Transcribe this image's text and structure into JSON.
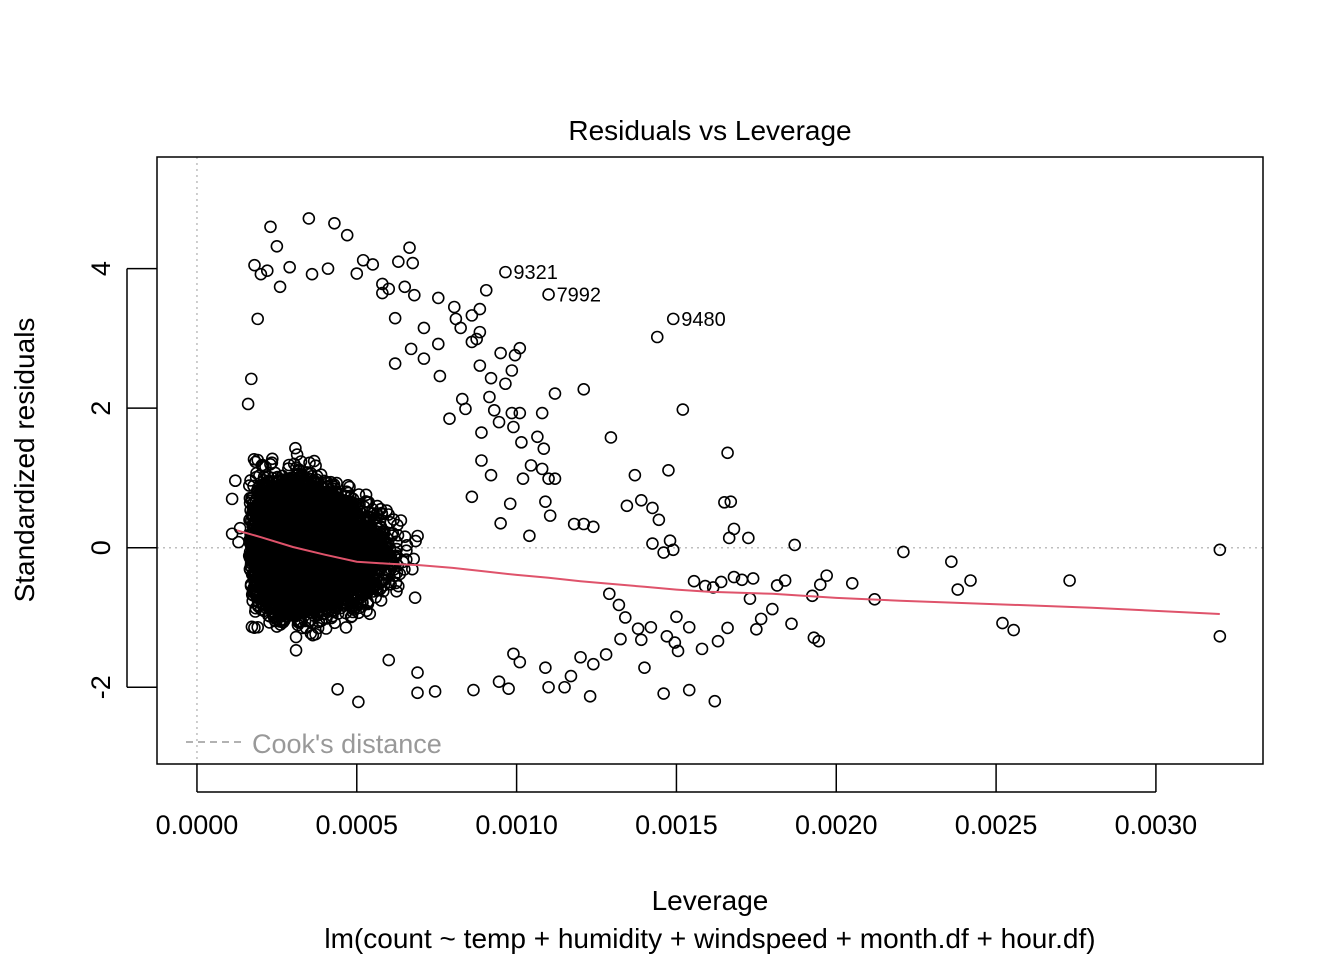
{
  "chart_data": {
    "type": "scatter",
    "title": "Residuals vs Leverage",
    "xlabel": "Leverage",
    "subtitle": "lm(count ~ temp + humidity + windspeed + month.df + hour.df)",
    "ylabel": "Standardized residuals",
    "xlim": [
      -0.000125,
      0.003335
    ],
    "ylim": [
      -3.1,
      5.6
    ],
    "x_ticks": [
      0.0,
      0.0005,
      0.001,
      0.0015,
      0.002,
      0.0025,
      0.003
    ],
    "x_tick_labels": [
      "0.0000",
      "0.0005",
      "0.0010",
      "0.0015",
      "0.0020",
      "0.0025",
      "0.0030"
    ],
    "y_ticks": [
      -2,
      0,
      2,
      4
    ],
    "y_tick_labels": [
      "-2",
      "0",
      "2",
      "4"
    ],
    "reference_lines": {
      "horizontal": 0,
      "vertical": 0
    },
    "legend": {
      "entries": [
        "Cook's distance"
      ],
      "placement": "bottom-left"
    },
    "colors": {
      "points": "#000000",
      "smooth": "#DF536B",
      "reference": "#bebebe",
      "legend_text": "#999999"
    },
    "labeled_points": [
      {
        "label": "9321",
        "x": 0.000965,
        "y": 3.95
      },
      {
        "label": "7992",
        "x": 0.0011,
        "y": 3.63
      },
      {
        "label": "9480",
        "x": 0.00149,
        "y": 3.28
      }
    ],
    "points": [
      [
        0.00011,
        0.2
      ],
      [
        0.00011,
        0.7
      ],
      [
        0.000135,
        0.28
      ],
      [
        0.00013,
        0.08
      ],
      [
        0.00012,
        0.96
      ],
      [
        0.00023,
        4.6
      ],
      [
        0.00035,
        4.72
      ],
      [
        0.00043,
        4.65
      ],
      [
        0.00047,
        4.48
      ],
      [
        0.00025,
        4.32
      ],
      [
        0.000665,
        4.3
      ],
      [
        0.00063,
        4.1
      ],
      [
        0.000675,
        4.08
      ],
      [
        0.00052,
        4.12
      ],
      [
        0.00018,
        4.05
      ],
      [
        0.00058,
        3.78
      ],
      [
        0.00058,
        3.65
      ],
      [
        0.000755,
        3.58
      ],
      [
        0.00068,
        3.62
      ],
      [
        0.000805,
        3.45
      ],
      [
        0.00081,
        3.28
      ],
      [
        0.00086,
        3.33
      ],
      [
        0.000885,
        3.42
      ],
      [
        0.000905,
        3.69
      ],
      [
        0.000885,
        3.09
      ],
      [
        0.000825,
        3.15
      ],
      [
        0.000755,
        2.92
      ],
      [
        0.000875,
        2.99
      ],
      [
        0.00086,
        2.95
      ],
      [
        0.00095,
        2.79
      ],
      [
        0.000995,
        2.76
      ],
      [
        0.00101,
        2.86
      ],
      [
        0.000985,
        2.54
      ],
      [
        0.000965,
        2.35
      ],
      [
        0.000885,
        2.61
      ],
      [
        0.00092,
        2.43
      ],
      [
        0.000915,
        2.16
      ],
      [
        0.00093,
        1.97
      ],
      [
        0.000985,
        1.93
      ],
      [
        0.00101,
        1.93
      ],
      [
        0.00099,
        1.73
      ],
      [
        0.000945,
        1.8
      ],
      [
        0.00089,
        1.65
      ],
      [
        0.001015,
        1.51
      ],
      [
        0.001065,
        1.59
      ],
      [
        0.00108,
        1.93
      ],
      [
        0.00112,
        2.21
      ],
      [
        0.00121,
        2.27
      ],
      [
        0.001085,
        1.42
      ],
      [
        0.00108,
        1.13
      ],
      [
        0.001045,
        1.18
      ],
      [
        0.00102,
        0.99
      ],
      [
        0.0011,
        0.99
      ],
      [
        0.00112,
        0.99
      ],
      [
        0.00109,
        0.66
      ],
      [
        0.001105,
        0.46
      ],
      [
        0.00118,
        0.34
      ],
      [
        0.00121,
        0.34
      ],
      [
        0.00124,
        0.3
      ],
      [
        0.001295,
        1.58
      ],
      [
        0.001345,
        0.6
      ],
      [
        0.00137,
        1.04
      ],
      [
        0.00139,
        0.68
      ],
      [
        0.001425,
        0.57
      ],
      [
        0.001425,
        0.06
      ],
      [
        0.00144,
        3.02
      ],
      [
        0.001445,
        0.4
      ],
      [
        0.00146,
        -0.07
      ],
      [
        0.001475,
        1.11
      ],
      [
        0.00152,
        1.98
      ],
      [
        0.00148,
        0.1
      ],
      [
        0.00149,
        -0.03
      ],
      [
        0.001555,
        -0.48
      ],
      [
        0.00159,
        -0.55
      ],
      [
        0.001615,
        -0.57
      ],
      [
        0.00164,
        -0.49
      ],
      [
        0.00165,
        0.65
      ],
      [
        0.00167,
        0.66
      ],
      [
        0.00166,
        1.36
      ],
      [
        0.001665,
        0.14
      ],
      [
        0.00168,
        0.27
      ],
      [
        0.00168,
        -0.42
      ],
      [
        0.001705,
        -0.46
      ],
      [
        0.001725,
        0.14
      ],
      [
        0.00173,
        -0.73
      ],
      [
        0.00174,
        -0.44
      ],
      [
        0.00175,
        -1.17
      ],
      [
        0.001765,
        -1.02
      ],
      [
        0.0018,
        -0.88
      ],
      [
        0.001815,
        -0.54
      ],
      [
        0.00184,
        -0.47
      ],
      [
        0.00186,
        -1.09
      ],
      [
        0.00187,
        0.04
      ],
      [
        0.001925,
        -0.69
      ],
      [
        0.00193,
        -1.29
      ],
      [
        0.001945,
        -1.34
      ],
      [
        0.00195,
        -0.53
      ],
      [
        0.00197,
        -0.4
      ],
      [
        0.00205,
        -0.51
      ],
      [
        0.00212,
        -0.74
      ],
      [
        0.00221,
        -0.06
      ],
      [
        0.00236,
        -0.2
      ],
      [
        0.00238,
        -0.6
      ],
      [
        0.00242,
        -0.47
      ],
      [
        0.00252,
        -1.08
      ],
      [
        0.002555,
        -1.18
      ],
      [
        0.00273,
        -0.47
      ],
      [
        0.0032,
        -0.03
      ],
      [
        0.0032,
        -1.27
      ],
      [
        0.00162,
        -2.2
      ],
      [
        0.00154,
        -2.04
      ],
      [
        0.00146,
        -2.09
      ],
      [
        0.00123,
        -2.13
      ],
      [
        0.00115,
        -2.0
      ],
      [
        0.0011,
        -2.0
      ],
      [
        0.00109,
        -1.72
      ],
      [
        0.000975,
        -2.02
      ],
      [
        0.000945,
        -1.92
      ],
      [
        0.000865,
        -2.04
      ],
      [
        0.000745,
        -2.06
      ],
      [
        0.00069,
        -2.08
      ],
      [
        0.000505,
        -2.21
      ],
      [
        0.00044,
        -2.03
      ],
      [
        0.0014,
        -1.72
      ],
      [
        0.00139,
        -1.32
      ],
      [
        0.001495,
        -1.36
      ],
      [
        0.001505,
        -1.48
      ],
      [
        0.00158,
        -1.45
      ],
      [
        0.00163,
        -1.34
      ],
      [
        0.00166,
        -1.15
      ],
      [
        0.00154,
        -1.14
      ],
      [
        0.0015,
        -0.99
      ],
      [
        0.00147,
        -1.27
      ],
      [
        0.00142,
        -1.14
      ],
      [
        0.00138,
        -1.16
      ],
      [
        0.00134,
        -1.0
      ],
      [
        0.00132,
        -0.82
      ],
      [
        0.00129,
        -0.66
      ],
      [
        0.001325,
        -1.31
      ],
      [
        0.00128,
        -1.53
      ],
      [
        0.0012,
        -1.57
      ],
      [
        0.00117,
        -1.84
      ],
      [
        0.00124,
        -1.67
      ],
      [
        0.00101,
        -1.64
      ],
      [
        0.00099,
        -1.52
      ],
      [
        0.00069,
        -1.79
      ],
      [
        0.0006,
        -1.61
      ],
      [
        0.00031,
        -1.47
      ],
      [
        0.00031,
        -1.28
      ],
      [
        0.00025,
        -1.13
      ],
      [
        0.00019,
        -1.14
      ],
      [
        0.00018,
        -0.6
      ],
      [
        0.00017,
        2.42
      ],
      [
        0.00016,
        2.06
      ],
      [
        0.00019,
        3.28
      ],
      [
        0.0002,
        3.92
      ],
      [
        0.00022,
        3.97
      ],
      [
        0.00026,
        3.74
      ],
      [
        0.00029,
        4.02
      ],
      [
        0.00036,
        3.92
      ],
      [
        0.00055,
        4.06
      ],
      [
        0.0005,
        3.93
      ],
      [
        0.00041,
        4.0
      ],
      [
        0.0006,
        3.71
      ],
      [
        0.00065,
        3.74
      ],
      [
        0.00062,
        3.29
      ],
      [
        0.00071,
        3.15
      ],
      [
        0.00067,
        2.85
      ],
      [
        0.00071,
        2.71
      ],
      [
        0.00062,
        2.64
      ],
      [
        0.00076,
        2.46
      ],
      [
        0.00083,
        2.13
      ],
      [
        0.00084,
        1.99
      ],
      [
        0.00079,
        1.85
      ],
      [
        0.00089,
        1.25
      ],
      [
        0.00092,
        1.04
      ],
      [
        0.00086,
        0.73
      ],
      [
        0.00098,
        0.63
      ],
      [
        0.00095,
        0.35
      ],
      [
        0.00104,
        0.17
      ]
    ],
    "smooth_line": [
      [
        0.000125,
        0.25
      ],
      [
        0.0002,
        0.15
      ],
      [
        0.0003,
        0.01
      ],
      [
        0.0004,
        -0.1
      ],
      [
        0.0005,
        -0.2
      ],
      [
        0.0006,
        -0.23
      ],
      [
        0.0007,
        -0.25
      ],
      [
        0.0008,
        -0.29
      ],
      [
        0.0009,
        -0.34
      ],
      [
        0.001,
        -0.39
      ],
      [
        0.0011,
        -0.43
      ],
      [
        0.0012,
        -0.48
      ],
      [
        0.0013,
        -0.52
      ],
      [
        0.0014,
        -0.56
      ],
      [
        0.0015,
        -0.6
      ],
      [
        0.0016,
        -0.63
      ],
      [
        0.0018,
        -0.66
      ],
      [
        0.002,
        -0.72
      ],
      [
        0.0022,
        -0.76
      ],
      [
        0.0025,
        -0.81
      ],
      [
        0.0028,
        -0.86
      ],
      [
        0.0032,
        -0.95
      ]
    ]
  }
}
